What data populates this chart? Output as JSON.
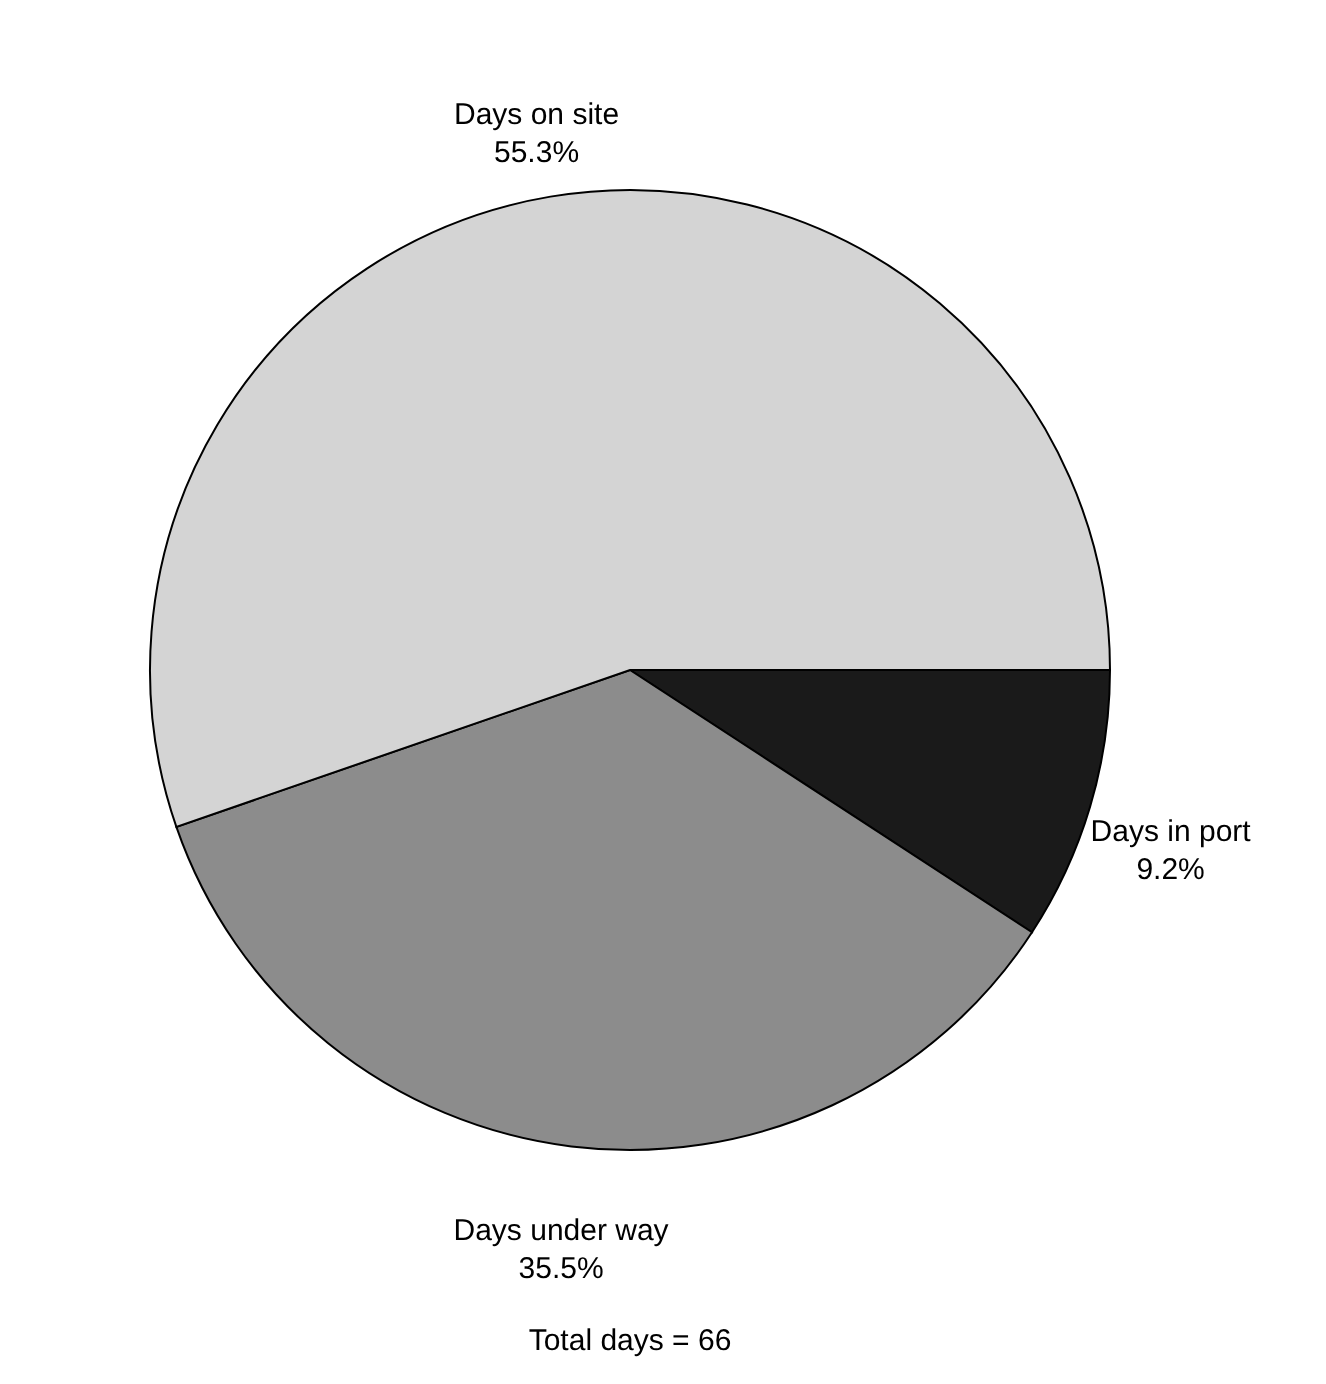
{
  "chart_data": {
    "type": "pie",
    "categories": [
      "Days in port",
      "Days under way",
      "Days on site"
    ],
    "values": [
      9.2,
      35.5,
      55.3
    ],
    "colors": [
      "#1a1a1a",
      "#8c8c8c",
      "#d4d4d4"
    ],
    "value_labels": [
      "9.2%",
      "35.5%",
      "55.3%"
    ],
    "annotations": [
      "Total days = 66"
    ]
  }
}
